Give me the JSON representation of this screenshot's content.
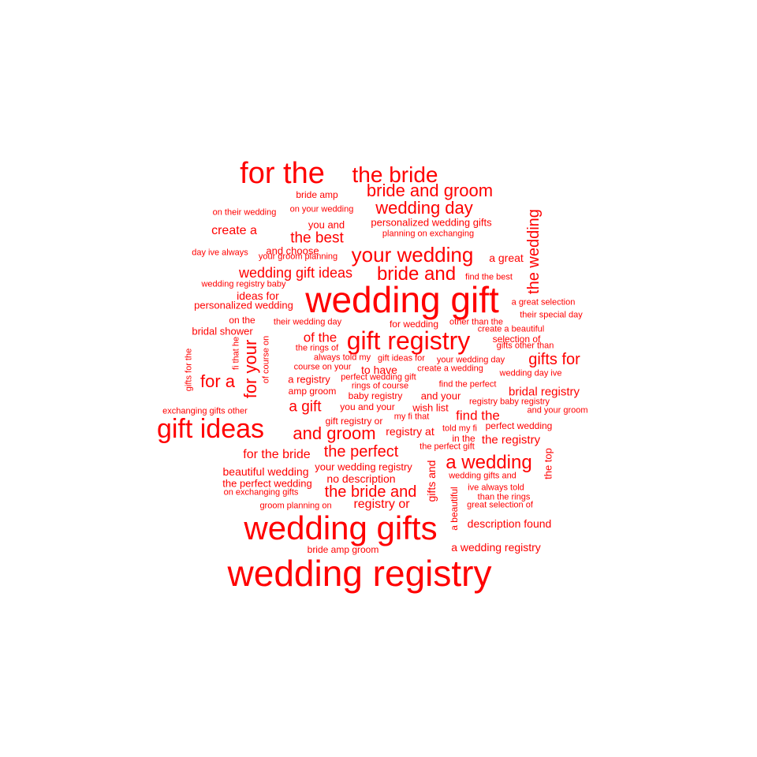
{
  "color": "#ff0000",
  "words": [
    {
      "text": "wedding gift",
      "weight": 46
    },
    {
      "text": "wedding registry",
      "weight": 46
    },
    {
      "text": "wedding gifts",
      "weight": 42
    },
    {
      "text": "for the",
      "weight": 38
    },
    {
      "text": "gift ideas",
      "weight": 34
    },
    {
      "text": "gift registry",
      "weight": 32
    },
    {
      "text": "your wedding",
      "weight": 26
    },
    {
      "text": "the bride",
      "weight": 28
    },
    {
      "text": "bride and groom",
      "weight": 22
    },
    {
      "text": "wedding day",
      "weight": 22
    },
    {
      "text": "bride and",
      "weight": 24
    },
    {
      "text": "a wedding",
      "weight": 24
    },
    {
      "text": "and groom",
      "weight": 22
    },
    {
      "text": "for your",
      "weight": 22
    },
    {
      "text": "the wedding",
      "weight": 20
    },
    {
      "text": "for a",
      "weight": 22
    },
    {
      "text": "the bride and",
      "weight": 20
    },
    {
      "text": "the perfect",
      "weight": 20
    },
    {
      "text": "gifts for",
      "weight": 20
    },
    {
      "text": "a gift",
      "weight": 19
    },
    {
      "text": "the best",
      "weight": 19
    },
    {
      "text": "wedding gift ideas",
      "weight": 18
    },
    {
      "text": "find the",
      "weight": 17
    },
    {
      "text": "of the",
      "weight": 17
    },
    {
      "text": "create a",
      "weight": 16
    },
    {
      "text": "for the bride",
      "weight": 16
    },
    {
      "text": "registry or",
      "weight": 16
    },
    {
      "text": "the registry",
      "weight": 15
    },
    {
      "text": "bridal registry",
      "weight": 15
    },
    {
      "text": "description found",
      "weight": 14
    },
    {
      "text": "a wedding registry",
      "weight": 14
    },
    {
      "text": "no description",
      "weight": 14
    },
    {
      "text": "your wedding registry",
      "weight": 13
    },
    {
      "text": "beautiful wedding",
      "weight": 14
    },
    {
      "text": "gifts and",
      "weight": 14
    },
    {
      "text": "a great",
      "weight": 14
    },
    {
      "text": "registry at",
      "weight": 14
    },
    {
      "text": "the top",
      "weight": 13
    },
    {
      "text": "to have",
      "weight": 14
    },
    {
      "text": "ideas for",
      "weight": 14
    },
    {
      "text": "bridal shower",
      "weight": 13
    },
    {
      "text": "personalized wedding",
      "weight": 13
    },
    {
      "text": "the perfect wedding",
      "weight": 13
    },
    {
      "text": "personalized wedding gifts",
      "weight": 13
    },
    {
      "text": "you and",
      "weight": 13
    },
    {
      "text": "and your",
      "weight": 13
    },
    {
      "text": "wish list",
      "weight": 13
    },
    {
      "text": "a registry",
      "weight": 13
    },
    {
      "text": "you and your",
      "weight": 12
    },
    {
      "text": "baby registry",
      "weight": 12
    },
    {
      "text": "perfect wedding",
      "weight": 12
    },
    {
      "text": "bride amp",
      "weight": 12
    },
    {
      "text": "bride amp groom",
      "weight": 12
    },
    {
      "text": "and choose",
      "weight": 13
    },
    {
      "text": "amp groom",
      "weight": 12
    },
    {
      "text": "gift registry or",
      "weight": 12
    },
    {
      "text": "a beautiful",
      "weight": 12
    },
    {
      "text": "for wedding",
      "weight": 12
    },
    {
      "text": "on the",
      "weight": 12
    },
    {
      "text": "planning on exchanging",
      "weight": 11
    },
    {
      "text": "on your wedding",
      "weight": 11
    },
    {
      "text": "on their wedding",
      "weight": 11
    },
    {
      "text": "day ive always",
      "weight": 11
    },
    {
      "text": "your groom planning",
      "weight": 11
    },
    {
      "text": "wedding registry baby",
      "weight": 11
    },
    {
      "text": "their wedding day",
      "weight": 11
    },
    {
      "text": "find the best",
      "weight": 11
    },
    {
      "text": "a great selection",
      "weight": 11
    },
    {
      "text": "their special day",
      "weight": 11
    },
    {
      "text": "other than the",
      "weight": 11
    },
    {
      "text": "create a beautiful",
      "weight": 11
    },
    {
      "text": "selection of",
      "weight": 12
    },
    {
      "text": "gifts other than",
      "weight": 11
    },
    {
      "text": "the rings of",
      "weight": 11
    },
    {
      "text": "always told my",
      "weight": 11
    },
    {
      "text": "gift ideas for",
      "weight": 11
    },
    {
      "text": "your wedding day",
      "weight": 11
    },
    {
      "text": "course on your",
      "weight": 11
    },
    {
      "text": "create a wedding",
      "weight": 11
    },
    {
      "text": "wedding day ive",
      "weight": 11
    },
    {
      "text": "perfect wedding gift",
      "weight": 11
    },
    {
      "text": "rings of course",
      "weight": 11
    },
    {
      "text": "find the perfect",
      "weight": 11
    },
    {
      "text": "exchanging gifts other",
      "weight": 11
    },
    {
      "text": "registry baby registry",
      "weight": 11
    },
    {
      "text": "and your groom",
      "weight": 11
    },
    {
      "text": "my fi that",
      "weight": 11
    },
    {
      "text": "told my fi",
      "weight": 11
    },
    {
      "text": "in the",
      "weight": 12
    },
    {
      "text": "the perfect gift",
      "weight": 11
    },
    {
      "text": "wedding gifts and",
      "weight": 11
    },
    {
      "text": "ive always told",
      "weight": 11
    },
    {
      "text": "than the rings",
      "weight": 11
    },
    {
      "text": "great selection of",
      "weight": 11
    },
    {
      "text": "on exchanging gifts",
      "weight": 11
    },
    {
      "text": "groom planning on",
      "weight": 11
    },
    {
      "text": "gifts for the",
      "weight": 11
    },
    {
      "text": "fi that he",
      "weight": 11
    },
    {
      "text": "of course on",
      "weight": 11
    }
  ]
}
